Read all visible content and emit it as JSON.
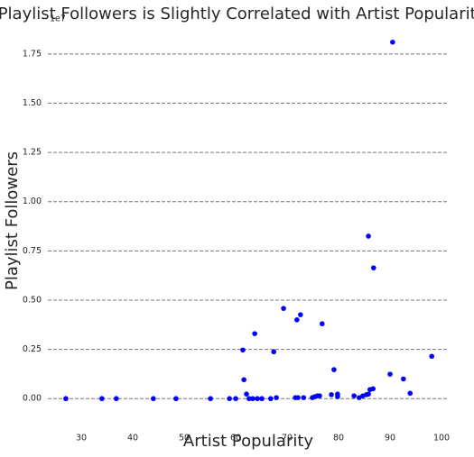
{
  "chart_data": {
    "type": "scatter",
    "title": "Playlist Followers is Slightly Correlated with Artist Popularity",
    "x_label": "Artist Popularity",
    "y_label": "Playlist Followers",
    "y_offset_label": "1e7",
    "color": "#0000ff",
    "grid": true,
    "xlim": [
      23.5,
      101.4
    ],
    "ylim": [
      -0.15,
      1.85
    ],
    "xticks": [
      30,
      40,
      50,
      60,
      70,
      80,
      90,
      100
    ],
    "yticks": [
      {
        "value": 0,
        "label": "0.00"
      },
      {
        "value": 0.25,
        "label": "0.25"
      },
      {
        "value": 0.5,
        "label": "0.50"
      },
      {
        "value": 0.75,
        "label": "0.75"
      },
      {
        "value": 1,
        "label": "1.00"
      },
      {
        "value": 1.25,
        "label": "1.25"
      },
      {
        "value": 1.5,
        "label": "1.50"
      },
      {
        "value": 1.75,
        "label": "1.75"
      }
    ],
    "x": [
      27.0,
      34.0,
      36.8,
      44.0,
      48.4,
      55.1,
      58.8,
      60.0,
      61.6,
      61.4,
      62.1,
      62.6,
      63.3,
      63.7,
      64.2,
      65.1,
      66.8,
      67.4,
      67.9,
      69.3,
      71.6,
      71.9,
      72.6,
      73.2,
      72.1,
      74.9,
      75.4,
      75.9,
      76.3,
      76.8,
      78.6,
      79.1,
      79.8,
      79.8,
      83.0,
      84.0,
      84.7,
      85.4,
      85.8,
      85.8,
      86.1,
      86.7,
      86.8,
      90.0,
      90.5,
      92.6,
      93.9,
      98.1
    ],
    "values": [
      0,
      0,
      0,
      0,
      0,
      0,
      0,
      0,
      0.096,
      0.247,
      0.023,
      0,
      0,
      0.33,
      0,
      0,
      0,
      0.238,
      0.005,
      0.458,
      0.005,
      0.4,
      0.426,
      0.005,
      0.005,
      0.005,
      0.01,
      0.014,
      0.014,
      0.38,
      0.02,
      0.147,
      0.01,
      0.023,
      0.014,
      0.005,
      0.014,
      0.02,
      0.825,
      0.023,
      0.046,
      0.05,
      0.664,
      0.124,
      1.81,
      0.1,
      0.027,
      0.215
    ]
  }
}
